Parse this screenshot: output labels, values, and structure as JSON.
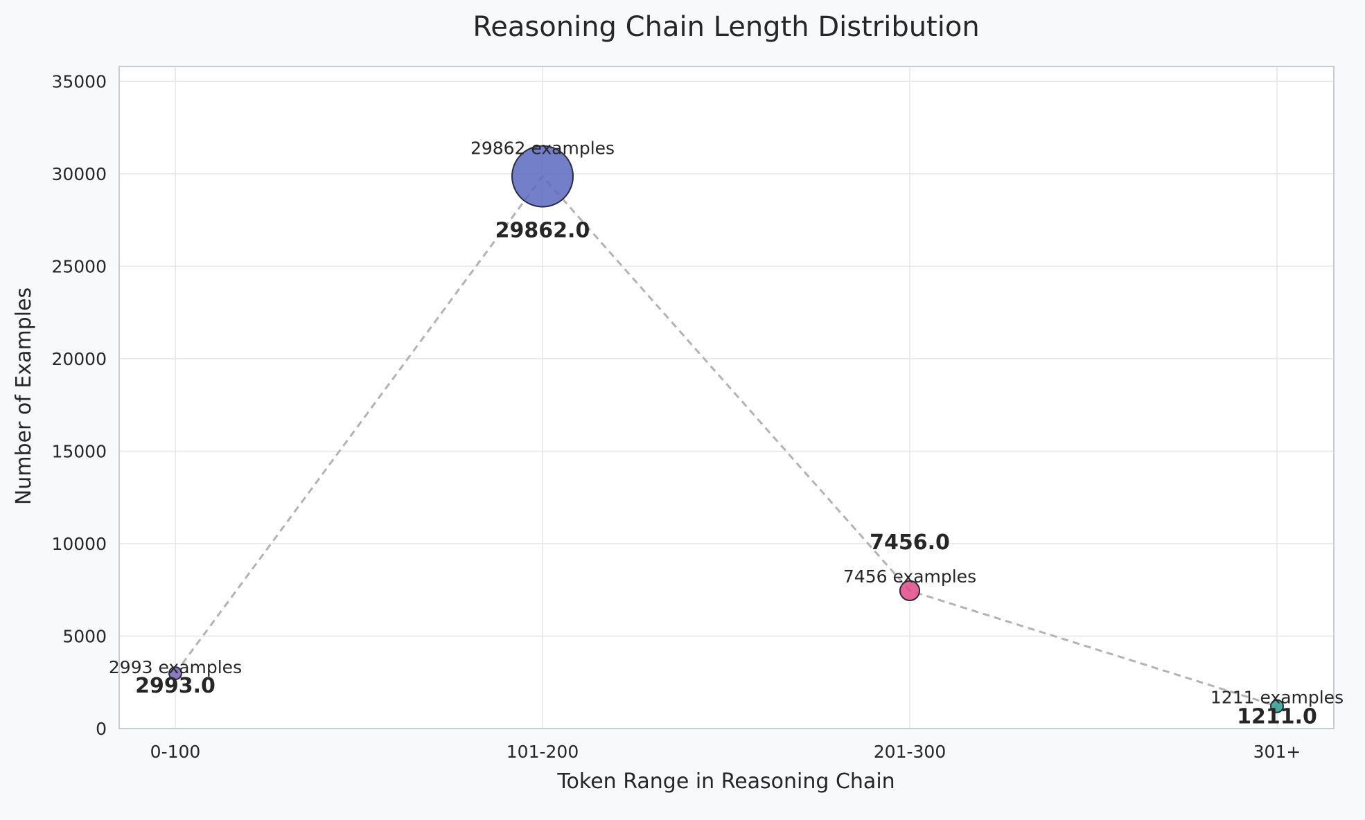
{
  "chart_data": {
    "type": "scatter",
    "title": "Reasoning Chain Length Distribution",
    "xlabel": "Token Range in Reasoning Chain",
    "ylabel": "Number of Examples",
    "categories": [
      "0-100",
      "101-200",
      "201-300",
      "301+"
    ],
    "values": [
      2993,
      29862,
      7456,
      1211
    ],
    "point_labels": [
      "2993 examples",
      "29862 examples",
      "7456 examples",
      "1211 examples"
    ],
    "value_labels": [
      "2993.0",
      "29862.0",
      "7456.0",
      "1211.0"
    ],
    "point_colors": [
      "#7a63b8",
      "#5a68bf",
      "#e04a86",
      "#2a9d8f"
    ],
    "marker_size": "proportional-to-value",
    "connector": "dashed-line",
    "connector_color": "#b3b3b3",
    "ylim": [
      0,
      35800
    ],
    "yticks": [
      0,
      5000,
      10000,
      15000,
      20000,
      25000,
      30000,
      35000
    ],
    "grid": true,
    "legend": "none"
  }
}
